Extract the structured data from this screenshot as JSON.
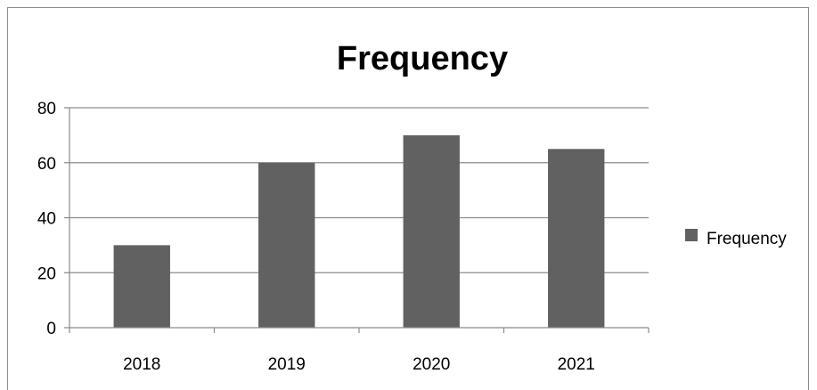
{
  "chart_data": {
    "type": "bar",
    "title": "Frequency",
    "categories": [
      "2018",
      "2019",
      "2020",
      "2021"
    ],
    "series": [
      {
        "name": "Frequency",
        "values": [
          30,
          60,
          70,
          65
        ]
      }
    ],
    "ylim": [
      0,
      80
    ],
    "yticks": [
      0,
      20,
      40,
      60,
      80
    ],
    "xlabel": "",
    "ylabel": "",
    "grid": true,
    "legend_position": "right",
    "colors": {
      "bar": "#616161",
      "grid": "#8c8c8c",
      "axis": "#8c8c8c"
    }
  }
}
